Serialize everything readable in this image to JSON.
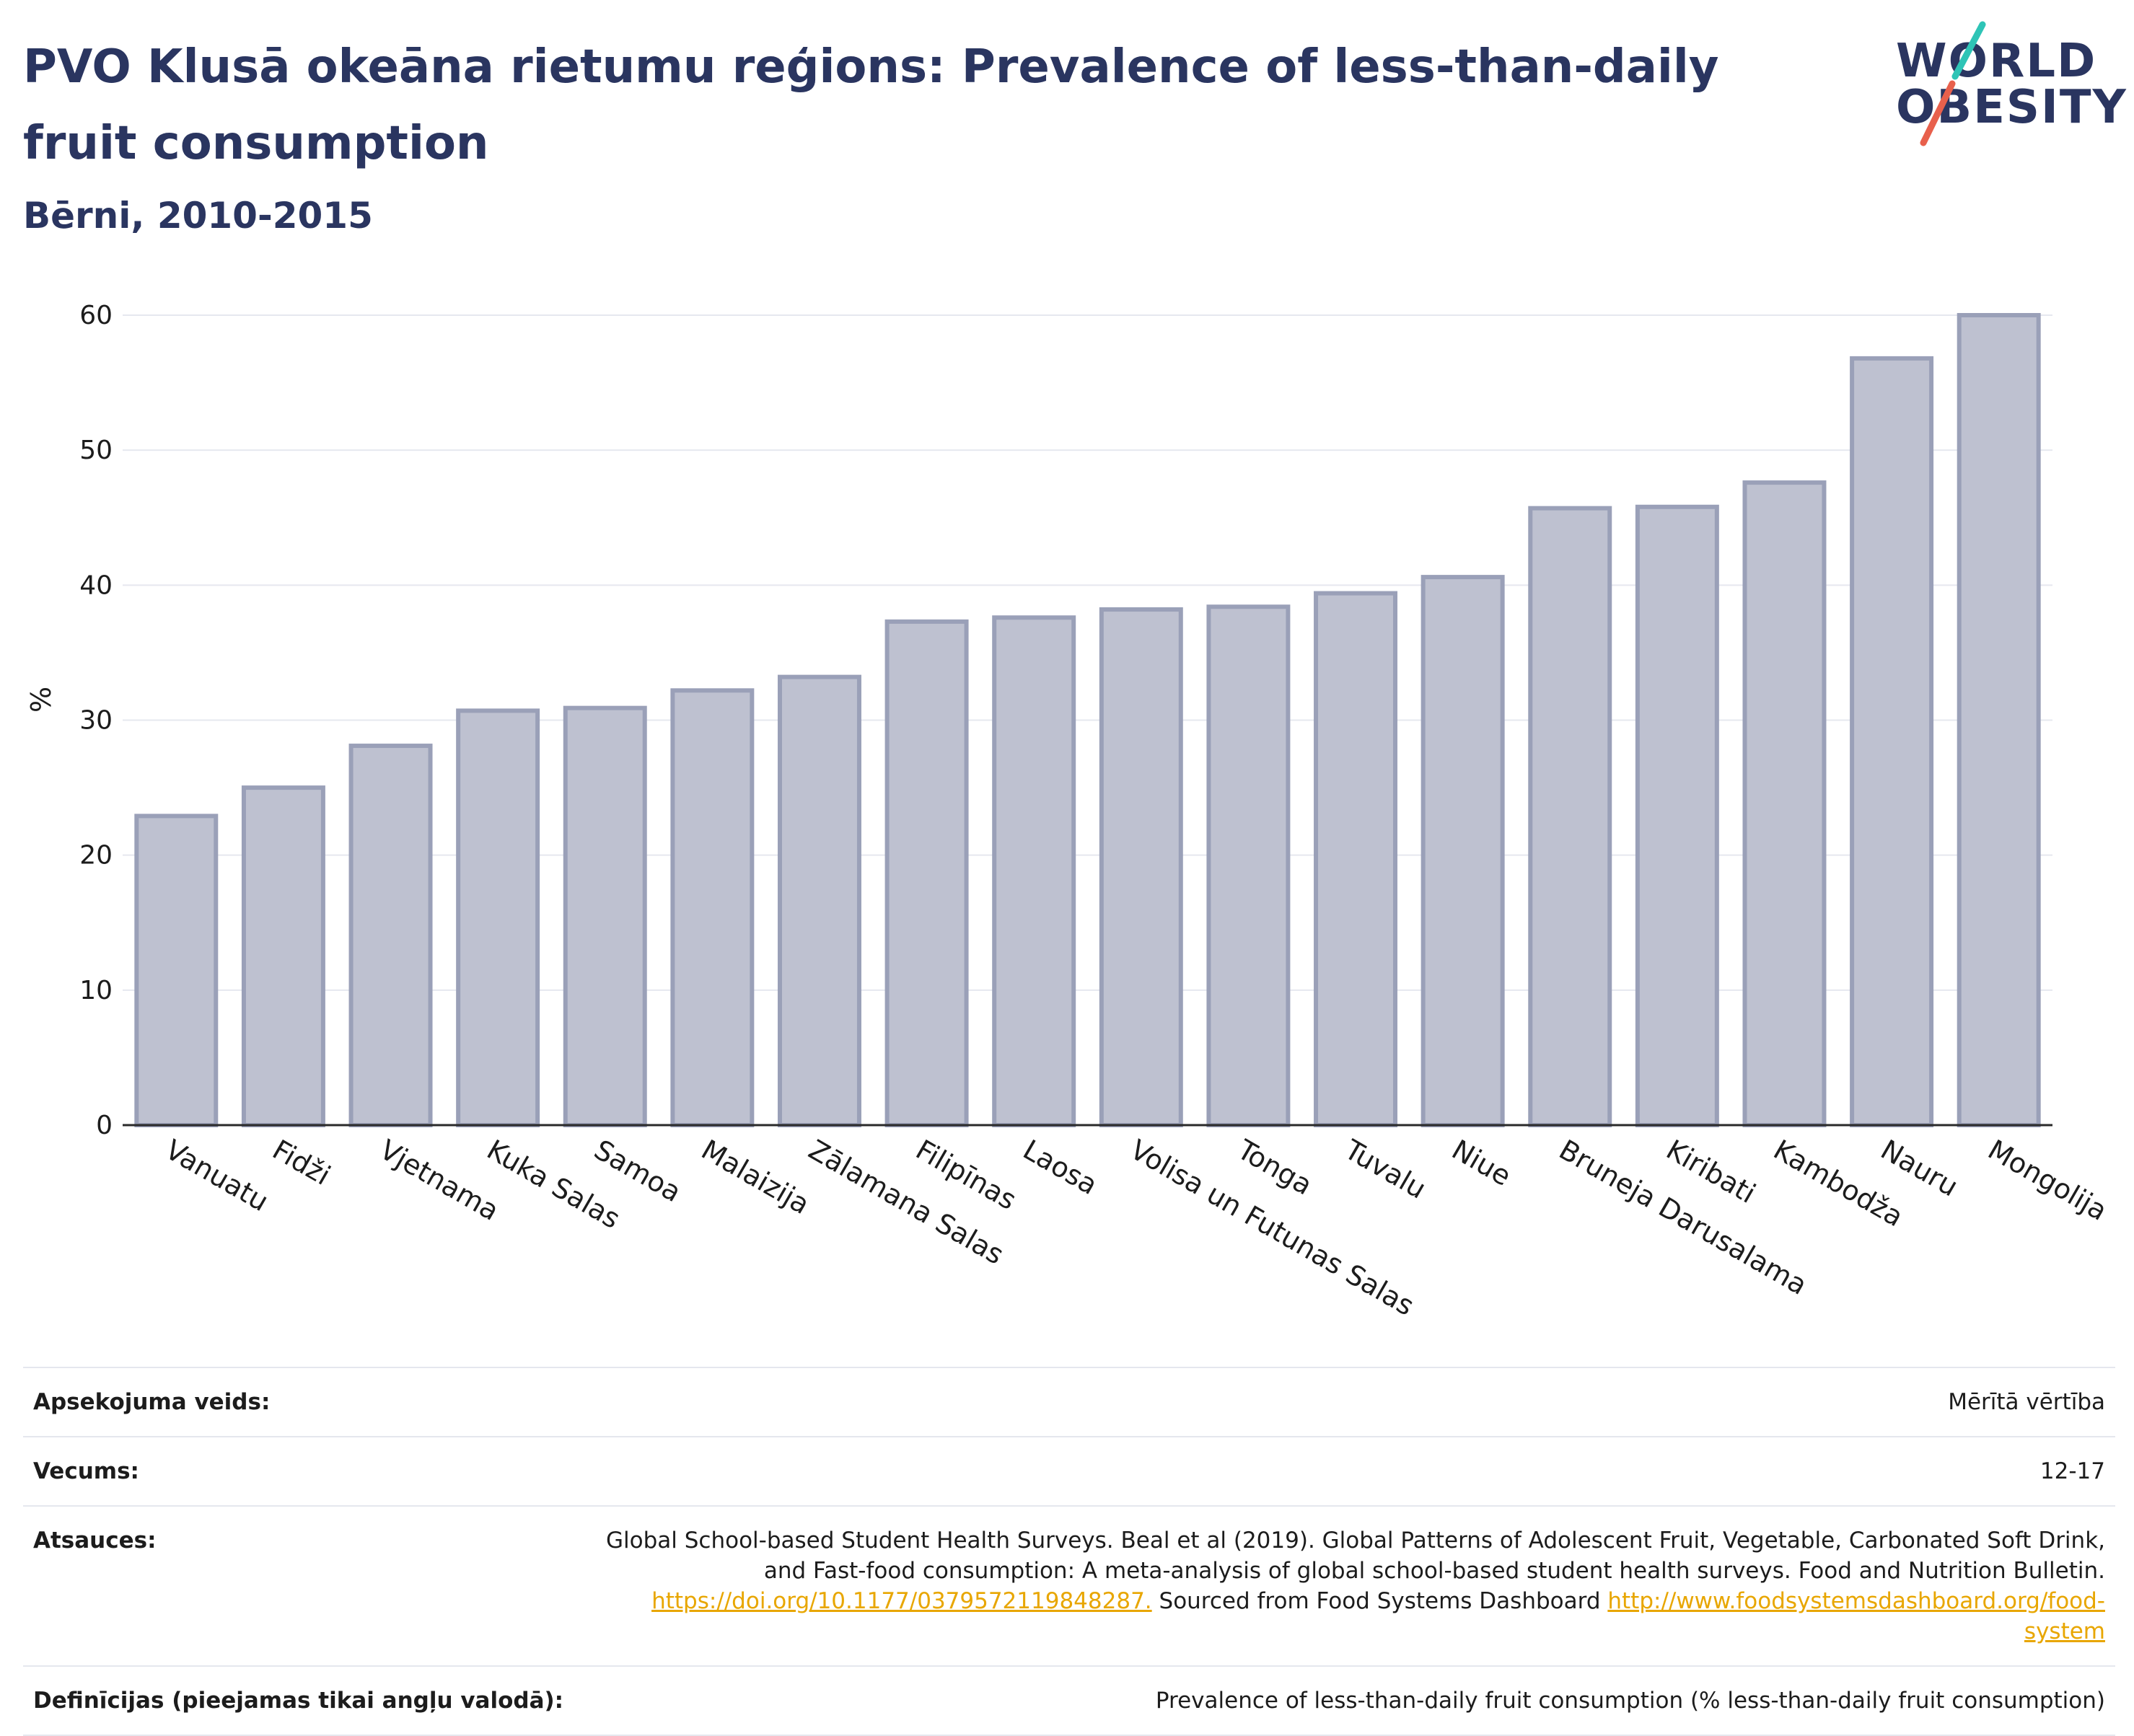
{
  "header": {
    "title": "PVO Klusā okeāna rietumu reģions: Prevalence of less-than-daily fruit consumption",
    "subtitle": "Bērni, 2010-2015"
  },
  "logo": {
    "line1": "WORLD",
    "line2": "OBESITY",
    "colors": {
      "slash_top": "#2ec4b6",
      "slash_bottom": "#e8604c"
    }
  },
  "chart_data": {
    "type": "bar",
    "title": "PVO Klusā okeāna rietumu reģions: Prevalence of less-than-daily fruit consumption",
    "ylabel": "%",
    "xlabel": "",
    "ylim": [
      0,
      60
    ],
    "yticks": [
      0,
      10,
      20,
      30,
      40,
      50,
      60
    ],
    "grid": true,
    "colors": {
      "bar_fill": "#bec1d0",
      "bar_stroke": "#9aa0b8",
      "axis": "#2a2a2a",
      "grid": "#e6e8ef"
    },
    "categories": [
      "Vanuatu",
      "Fidži",
      "Vjetnama",
      "Kuka Salas",
      "Samoa",
      "Malaizija",
      "Zālamana Salas",
      "Filipīnas",
      "Laosa",
      "Volisa un Futunas Salas",
      "Tonga",
      "Tuvalu",
      "Niue",
      "Bruneja Darusalama",
      "Kiribati",
      "Kambodža",
      "Nauru",
      "Mongolija"
    ],
    "values": [
      22.9,
      25.0,
      28.1,
      30.7,
      30.9,
      32.2,
      33.2,
      37.3,
      37.6,
      38.2,
      38.4,
      39.4,
      40.6,
      45.7,
      45.8,
      47.6,
      56.8,
      60.0
    ]
  },
  "meta": {
    "survey_label": "Apsekojuma veids:",
    "survey_value": "Mērītā vērtība",
    "age_label": "Vecums:",
    "age_value": "12-17",
    "refs_label": "Atsauces:",
    "refs_text1": "Global School-based Student Health Surveys. Beal et al (2019). Global Patterns of Adolescent Fruit, Vegetable, Carbonated Soft Drink, and Fast-food consumption: A meta-analysis of global school-based student health surveys. Food and Nutrition Bulletin.",
    "refs_link1": "https://doi.org/10.1177/0379572119848287.",
    "refs_text2": "Sourced from Food Systems Dashboard",
    "refs_link2": "http://www.foodsystemsdashboard.org/food-system",
    "def_label": "Definīcijas (pieejamas tikai angļu valodā):",
    "def_value": "Prevalence of less-than-daily fruit consumption (% less-than-daily fruit consumption)"
  }
}
